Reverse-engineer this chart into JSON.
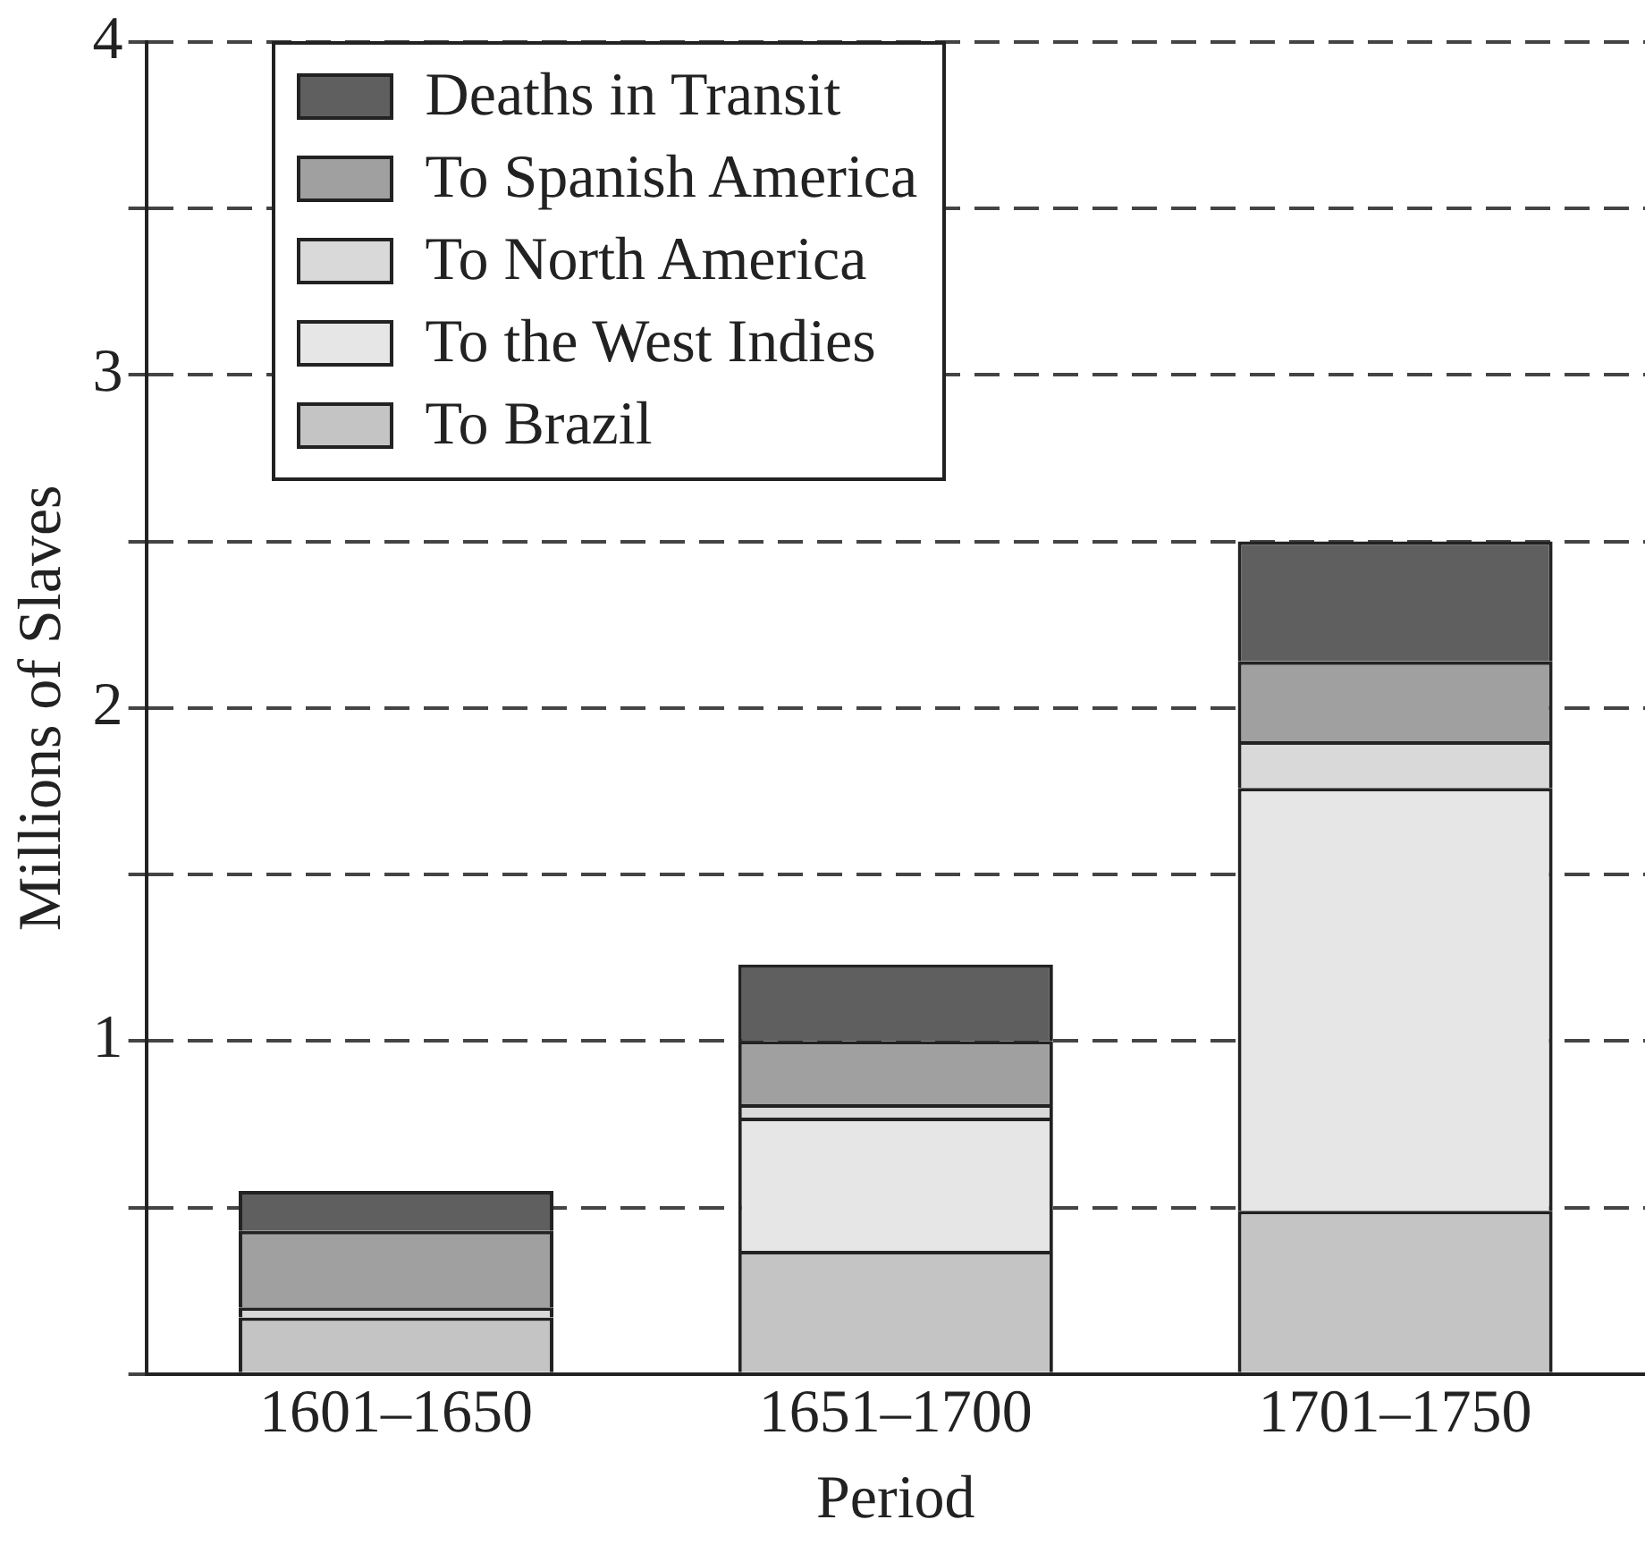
{
  "chart_data": {
    "type": "bar",
    "stacked": true,
    "xlabel": "Period",
    "ylabel": "Millions of Slaves",
    "categories": [
      "1601–1650",
      "1651–1700",
      "1701–1750"
    ],
    "series": [
      {
        "name": "To Brazil",
        "color": "#c4c4c4",
        "values": [
          0.17,
          0.37,
          0.49
        ]
      },
      {
        "name": "To the West Indies",
        "color": "#e6e6e6",
        "values": [
          null,
          0.4,
          1.27
        ]
      },
      {
        "name": "To North America",
        "color": "#d9d9d9",
        "values": [
          0.03,
          0.04,
          0.14
        ]
      },
      {
        "name": "To Spanish America",
        "color": "#a0a0a0",
        "values": [
          0.23,
          0.19,
          0.24
        ]
      },
      {
        "name": "Deaths in Transit",
        "color": "#5f5f5f",
        "values": [
          0.12,
          0.23,
          0.36
        ]
      }
    ],
    "ylim": [
      0,
      4
    ],
    "yticks": [
      {
        "value": 0,
        "label": null
      },
      {
        "value": 0.5,
        "label": null
      },
      1,
      {
        "value": 1.5,
        "label": null
      },
      2,
      {
        "value": 2.5,
        "label": null
      },
      3,
      {
        "value": 3.5,
        "label": null
      },
      4
    ],
    "grid": "y",
    "line_style": "dashed",
    "legend": "top left"
  }
}
